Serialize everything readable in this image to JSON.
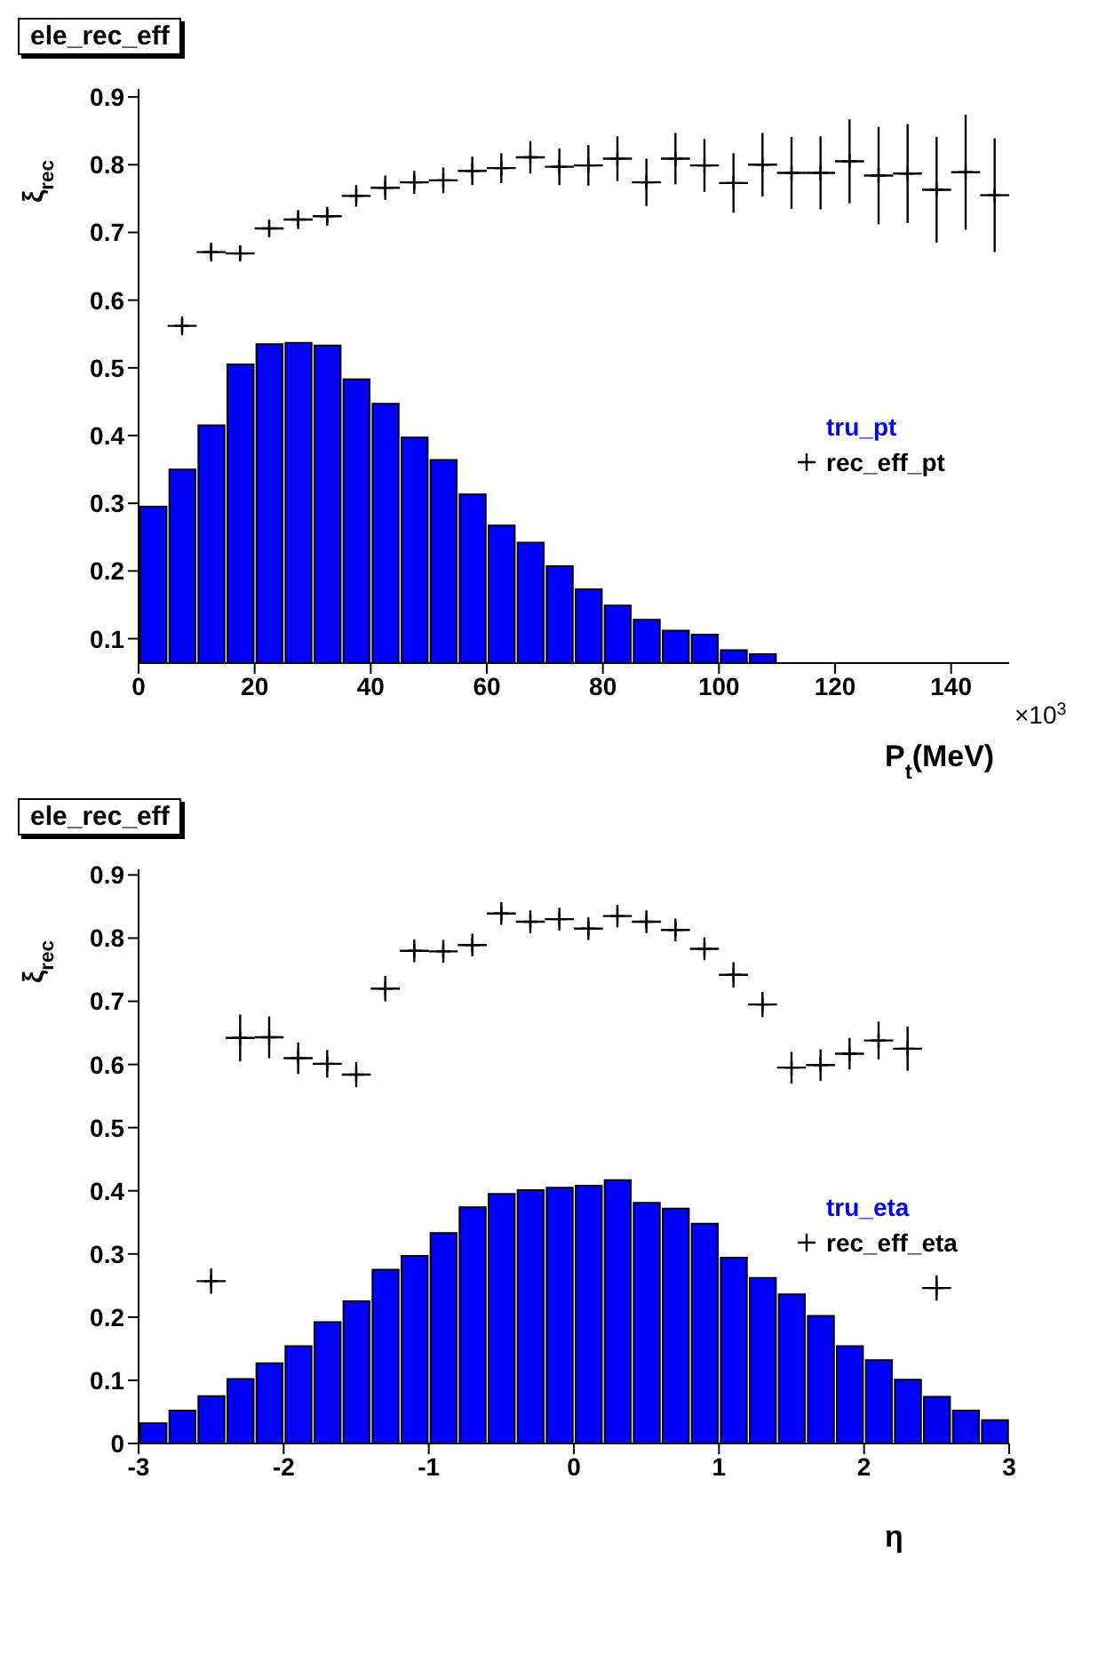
{
  "chart_data": [
    {
      "type": "histogram",
      "title": "ele_rec_eff",
      "xlabel": "P$_{t}$(MeV)",
      "ylabel": "ξ$_{rec}$",
      "annotations": [
        "×10$^{3}$"
      ],
      "xlim": [
        0,
        150
      ],
      "xticks": [
        0,
        20,
        40,
        60,
        80,
        100,
        120,
        140
      ],
      "ylim": [
        0.064,
        0.912
      ],
      "yticks": [
        0.1,
        0.2,
        0.3,
        0.4,
        0.5,
        0.6,
        0.7,
        0.8,
        0.9
      ],
      "legend": "right",
      "grid": false,
      "marker": "cross",
      "series": [
        {
          "name": "tru_pt",
          "color": "#0000ff",
          "bins": [
            0,
            5,
            10,
            15,
            20,
            25,
            30,
            35,
            40,
            45,
            50,
            55,
            60,
            65,
            70,
            75,
            80,
            85,
            90,
            95,
            100,
            105,
            110
          ],
          "values": [
            0.295,
            0.35,
            0.415,
            0.505,
            0.535,
            0.537,
            0.533,
            0.483,
            0.447,
            0.397,
            0.364,
            0.313,
            0.267,
            0.242,
            0.207,
            0.173,
            0.149,
            0.128,
            0.112,
            0.106,
            0.083,
            0.077
          ]
        },
        {
          "name": "rec_eff_pt",
          "type": "scatter",
          "color": "#000000",
          "x": [
            7.5,
            12.5,
            17.5,
            22.5,
            27.5,
            32.5,
            37.5,
            42.5,
            47.5,
            52.5,
            57.5,
            62.5,
            67.5,
            72.5,
            77.5,
            82.5,
            87.5,
            92.5,
            97.5,
            102.5,
            107.5,
            112.5,
            117.5,
            122.5,
            127.5,
            132.5,
            137.5,
            142.5,
            147.5
          ],
          "values": [
            0.562,
            0.671,
            0.669,
            0.706,
            0.719,
            0.724,
            0.754,
            0.766,
            0.774,
            0.777,
            0.791,
            0.795,
            0.811,
            0.797,
            0.799,
            0.809,
            0.774,
            0.809,
            0.799,
            0.773,
            0.8,
            0.788,
            0.788,
            0.805,
            0.784,
            0.787,
            0.763,
            0.789,
            0.755
          ],
          "errors": [
            0.014,
            0.014,
            0.012,
            0.013,
            0.014,
            0.014,
            0.016,
            0.018,
            0.017,
            0.019,
            0.021,
            0.022,
            0.024,
            0.027,
            0.03,
            0.033,
            0.035,
            0.038,
            0.039,
            0.044,
            0.047,
            0.053,
            0.054,
            0.062,
            0.072,
            0.073,
            0.078,
            0.085,
            0.084
          ],
          "xerrors": [
            2.5,
            2.5,
            2.5,
            2.5,
            2.5,
            2.5,
            2.5,
            2.5,
            2.5,
            2.5,
            2.5,
            2.5,
            2.5,
            2.5,
            2.5,
            2.5,
            2.5,
            2.5,
            2.5,
            2.5,
            2.5,
            2.5,
            2.5,
            2.5,
            2.5,
            2.5,
            2.5,
            2.5,
            2.5
          ]
        }
      ]
    },
    {
      "type": "histogram",
      "title": "ele_rec_eff",
      "xlabel": "η",
      "ylabel": "ξ$_{rec}$",
      "xlim": [
        -3,
        3
      ],
      "xticks": [
        -3,
        -2,
        -1,
        0,
        1,
        2,
        3
      ],
      "ylim": [
        0,
        0.909
      ],
      "yticks": [
        0,
        0.1,
        0.2,
        0.3,
        0.4,
        0.5,
        0.6,
        0.7,
        0.8,
        0.9
      ],
      "legend": "right",
      "grid": false,
      "marker": "cross",
      "series": [
        {
          "name": "tru_eta",
          "color": "#0000ff",
          "bins": [
            -3,
            -2.8,
            -2.6,
            -2.4,
            -2.2,
            -2,
            -1.8,
            -1.6,
            -1.4,
            -1.2,
            -1,
            -0.8,
            -0.6,
            -0.4,
            -0.2,
            0,
            0.2,
            0.4,
            0.6,
            0.8,
            1,
            1.2,
            1.4,
            1.6,
            1.8,
            2,
            2.2,
            2.4,
            2.6,
            2.8,
            3
          ],
          "values": [
            0.032,
            0.052,
            0.075,
            0.102,
            0.127,
            0.154,
            0.192,
            0.225,
            0.275,
            0.297,
            0.333,
            0.374,
            0.395,
            0.401,
            0.405,
            0.408,
            0.417,
            0.381,
            0.372,
            0.348,
            0.294,
            0.262,
            0.236,
            0.202,
            0.154,
            0.132,
            0.101,
            0.074,
            0.052,
            0.037
          ]
        },
        {
          "name": "rec_eff_eta",
          "type": "scatter",
          "color": "#000000",
          "x": [
            -2.5,
            -2.3,
            -2.1,
            -1.9,
            -1.7,
            -1.5,
            -1.3,
            -1.1,
            -0.9,
            -0.7,
            -0.5,
            -0.3,
            -0.1,
            0.1,
            0.3,
            0.5,
            0.7,
            0.9,
            1.1,
            1.3,
            1.5,
            1.7,
            1.9,
            2.1,
            2.3,
            2.5
          ],
          "values": [
            0.257,
            0.642,
            0.643,
            0.61,
            0.601,
            0.584,
            0.72,
            0.78,
            0.779,
            0.789,
            0.839,
            0.826,
            0.83,
            0.815,
            0.835,
            0.826,
            0.813,
            0.783,
            0.742,
            0.695,
            0.595,
            0.599,
            0.617,
            0.638,
            0.625,
            0.246
          ],
          "errors": [
            0.02,
            0.037,
            0.033,
            0.025,
            0.022,
            0.02,
            0.02,
            0.018,
            0.018,
            0.018,
            0.018,
            0.018,
            0.018,
            0.018,
            0.018,
            0.018,
            0.018,
            0.018,
            0.02,
            0.02,
            0.025,
            0.025,
            0.025,
            0.03,
            0.035,
            0.02
          ],
          "xerrors": [
            0.1,
            0.1,
            0.1,
            0.1,
            0.1,
            0.1,
            0.1,
            0.1,
            0.1,
            0.1,
            0.1,
            0.1,
            0.1,
            0.1,
            0.1,
            0.1,
            0.1,
            0.1,
            0.1,
            0.1,
            0.1,
            0.1,
            0.1,
            0.1,
            0.1,
            0.1
          ]
        }
      ]
    }
  ]
}
